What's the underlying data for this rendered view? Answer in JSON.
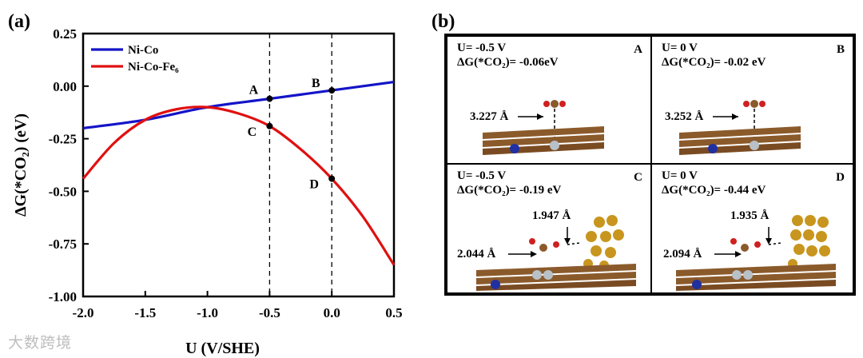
{
  "panel_a_label": "(a)",
  "panel_b_label": "(b)",
  "chart_data": {
    "type": "line",
    "xlabel": "U (V/SHE)",
    "ylabel": "ΔG(*CO₂) (eV)",
    "xlim": [
      -2.0,
      0.5
    ],
    "ylim": [
      -1.0,
      0.25
    ],
    "xticks": [
      "-2.0",
      "-1.5",
      "-1.0",
      "-0.5",
      "0.0",
      "0.5"
    ],
    "yticks": [
      "0.25",
      "0.00",
      "-0.25",
      "-0.50",
      "-0.75",
      "-1.00"
    ],
    "legend_position": "top-left",
    "series": [
      {
        "name": "Ni-Co",
        "color": "#1414c8",
        "x": [
          -2.0,
          -1.5,
          -1.0,
          -0.5,
          0.0,
          0.5
        ],
        "y": [
          -0.2,
          -0.16,
          -0.1,
          -0.06,
          -0.02,
          0.02
        ]
      },
      {
        "name": "Ni-Co-Fe₆",
        "color": "#e01010",
        "x": [
          -2.0,
          -1.75,
          -1.5,
          -1.25,
          -1.0,
          -0.75,
          -0.5,
          -0.25,
          0.0,
          0.25,
          0.5
        ],
        "y": [
          -0.44,
          -0.27,
          -0.16,
          -0.11,
          -0.1,
          -0.13,
          -0.19,
          -0.3,
          -0.44,
          -0.62,
          -0.85
        ]
      }
    ],
    "vlines": [
      -0.5,
      0.0
    ],
    "points": [
      {
        "label": "A",
        "x": -0.5,
        "y": -0.06
      },
      {
        "label": "B",
        "x": 0.0,
        "y": -0.02
      },
      {
        "label": "C",
        "x": -0.5,
        "y": -0.19
      },
      {
        "label": "D",
        "x": 0.0,
        "y": -0.44
      }
    ]
  },
  "panel_b": {
    "cells": [
      {
        "tag": "A",
        "u": "U= -0.5 V",
        "dg": "ΔG(*CO₂)= -0.06eV",
        "distances": [
          "3.227 Å"
        ]
      },
      {
        "tag": "B",
        "u": "U= 0 V",
        "dg": "ΔG(*CO₂)= -0.02 eV",
        "distances": [
          "3.252 Å"
        ]
      },
      {
        "tag": "C",
        "u": "U= -0.5 V",
        "dg": "ΔG(*CO₂)= -0.19 eV",
        "distances": [
          "1.947 Å",
          "2.044 Å"
        ]
      },
      {
        "tag": "D",
        "u": "U= 0 V",
        "dg": "ΔG(*CO₂)= -0.44 eV",
        "distances": [
          "1.935 Å",
          "2.094 Å"
        ]
      }
    ]
  },
  "watermark": "大数跨境"
}
